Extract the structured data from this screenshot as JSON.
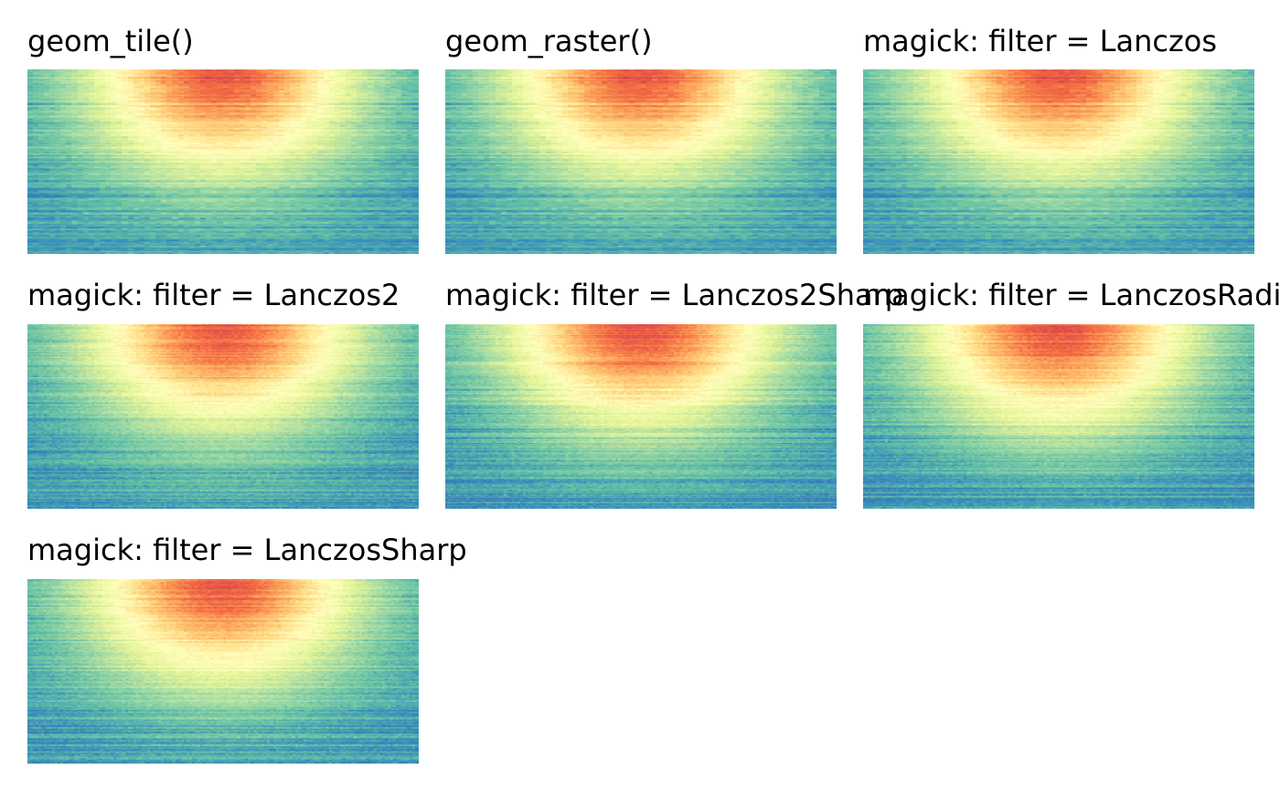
{
  "chart_data": [
    {
      "type": "heatmap",
      "title": "geom_tile()",
      "rows": 160,
      "cols": 70,
      "value_range": [
        0,
        1
      ],
      "palette": "Spectral (reversed)",
      "peak_x": 0.5,
      "peak_y": 0.0,
      "grain": "coarse",
      "seed": 11
    },
    {
      "type": "heatmap",
      "title": "geom_raster()",
      "rows": 160,
      "cols": 70,
      "value_range": [
        0,
        1
      ],
      "palette": "Spectral (reversed)",
      "peak_x": 0.5,
      "peak_y": 0.0,
      "grain": "coarse",
      "seed": 11
    },
    {
      "type": "heatmap",
      "title": "magick: filter = Lanczos",
      "rows": 160,
      "cols": 70,
      "value_range": [
        0,
        1
      ],
      "palette": "Spectral (reversed)",
      "peak_x": 0.5,
      "peak_y": 0.0,
      "grain": "coarse",
      "seed": 11
    },
    {
      "type": "heatmap",
      "title": "magick: filter = Lanczos2",
      "rows": 160,
      "cols": 140,
      "value_range": [
        0,
        1
      ],
      "palette": "Spectral (reversed)",
      "peak_x": 0.5,
      "peak_y": 0.0,
      "grain": "fine",
      "seed": 23
    },
    {
      "type": "heatmap",
      "title": "magick: filter = Lanczos2Sharp",
      "rows": 160,
      "cols": 140,
      "value_range": [
        0,
        1
      ],
      "palette": "Spectral (reversed)",
      "peak_x": 0.5,
      "peak_y": 0.0,
      "grain": "fine",
      "seed": 29
    },
    {
      "type": "heatmap",
      "title": "magick: filter = LanczosRadius",
      "rows": 160,
      "cols": 140,
      "value_range": [
        0,
        1
      ],
      "palette": "Spectral (reversed)",
      "peak_x": 0.5,
      "peak_y": 0.0,
      "grain": "fine",
      "seed": 31
    },
    {
      "type": "heatmap",
      "title": "magick: filter = LanczosSharp",
      "rows": 160,
      "cols": 140,
      "value_range": [
        0,
        1
      ],
      "palette": "Spectral (reversed)",
      "peak_x": 0.5,
      "peak_y": 0.0,
      "grain": "fine",
      "seed": 37
    }
  ],
  "colors": {
    "background": "#ffffff",
    "title_text": "#000000",
    "palette_stops": [
      "#5e4fa2",
      "#3288bd",
      "#66c2a5",
      "#abdda4",
      "#e6f598",
      "#ffffbf",
      "#fee08b",
      "#fdae61",
      "#f46d43",
      "#d53e4f"
    ]
  }
}
